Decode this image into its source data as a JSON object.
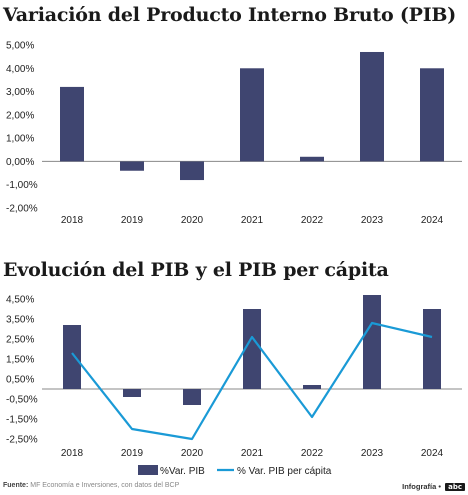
{
  "colors": {
    "bar": "#3f4570",
    "line": "#1a9ad6",
    "axis": "#888888",
    "grid": "#cccccc"
  },
  "chart_data": [
    {
      "type": "bar",
      "title": "Variación del Producto Interno Bruto (PIB)",
      "categories": [
        "2018",
        "2019",
        "2020",
        "2021",
        "2022",
        "2023",
        "2024"
      ],
      "series": [
        {
          "values": [
            3.2,
            -0.4,
            -0.8,
            4.0,
            0.2,
            4.7,
            4.0
          ]
        }
      ],
      "yticks": [
        "5,00%",
        "4,00%",
        "3,00%",
        "2,00%",
        "1,00%",
        "0,00%",
        "-1,00%",
        "-2,00%"
      ],
      "ylim": [
        -2,
        5
      ],
      "xlabel": "",
      "ylabel": ""
    },
    {
      "type": "bar",
      "title": "Evolución del PIB y el PIB per cápita",
      "categories": [
        "2018",
        "2019",
        "2020",
        "2021",
        "2022",
        "2023",
        "2024"
      ],
      "series": [
        {
          "name": "%Var. PIB",
          "type": "bar",
          "values": [
            3.2,
            -0.4,
            -0.8,
            4.0,
            0.2,
            4.7,
            4.0
          ]
        },
        {
          "name": "% Var. PIB per cápita",
          "type": "line",
          "values": [
            1.8,
            -2.0,
            -2.5,
            2.6,
            -1.4,
            3.3,
            2.6
          ]
        }
      ],
      "yticks": [
        "4,50%",
        "3,50%",
        "2,50%",
        "1,50%",
        "0,50%",
        "-0,50%",
        "-1,50%",
        "-2,50%"
      ],
      "ylim": [
        -2.5,
        4.5
      ],
      "legend": "bottom",
      "xlabel": "",
      "ylabel": ""
    }
  ],
  "footer": {
    "source_label": "Fuente:",
    "source_text": "MF Economía e Inversiones, con datos del BCP",
    "credit": "Infografía •",
    "logo": "abc"
  }
}
